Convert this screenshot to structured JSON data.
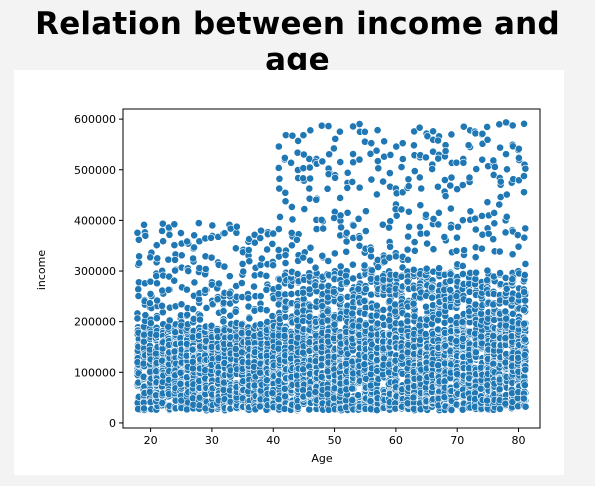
{
  "page_title": "Relation between income and age",
  "chart_data": {
    "type": "scatter",
    "title": "",
    "xlabel": "Age",
    "ylabel": "income",
    "xlim": [
      15.5,
      83.5
    ],
    "ylim": [
      -10000,
      620000
    ],
    "xticks": [
      20,
      30,
      40,
      50,
      60,
      70,
      80
    ],
    "yticks": [
      0,
      100000,
      200000,
      300000,
      400000,
      500000,
      600000
    ],
    "x_range": [
      18,
      81
    ],
    "grid": false,
    "marker_color": "#1f77b4",
    "marker_edge_color": "#ffffff",
    "description": {
      "dense_band": {
        "income": [
          25000,
          190000
        ],
        "age": [
          18,
          81
        ]
      },
      "age_18_40": {
        "income_max": 395000
      },
      "age_41_81": {
        "mid_band_income": [
          190000,
          300000
        ],
        "upper_income": [
          300000,
          595000
        ]
      }
    }
  }
}
